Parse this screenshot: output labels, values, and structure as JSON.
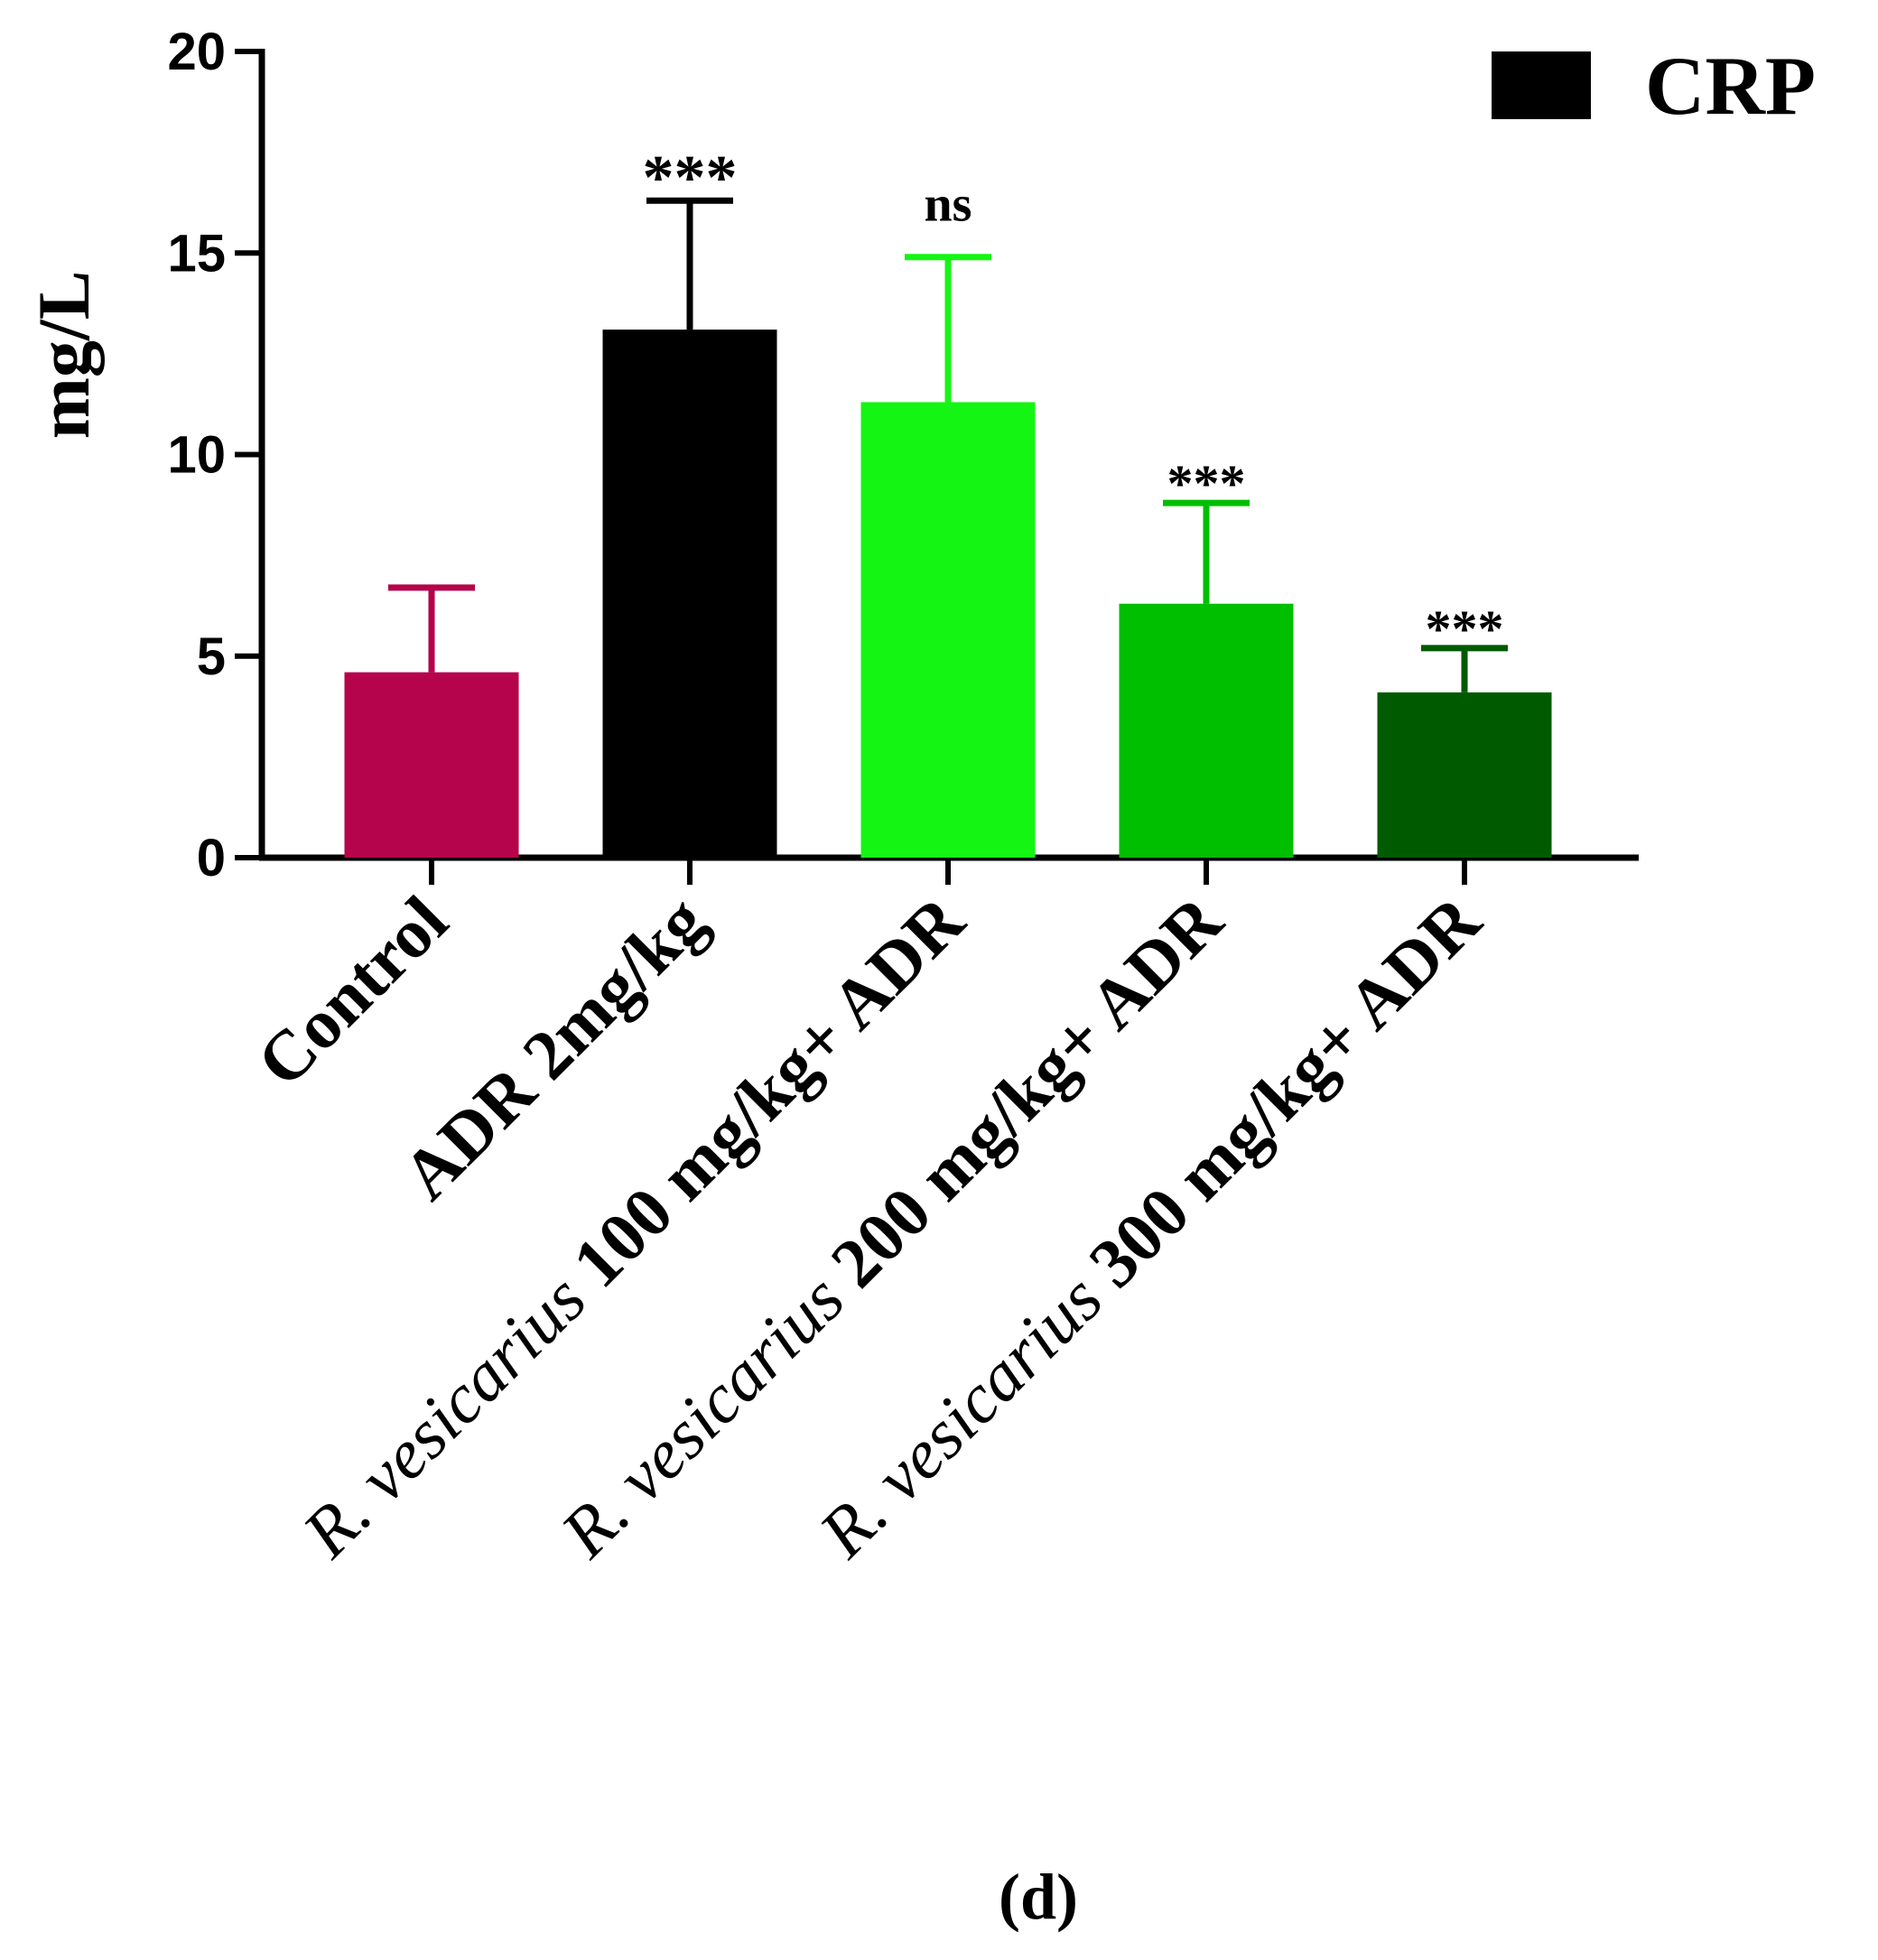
{
  "chart_data": {
    "type": "bar",
    "title": "",
    "ylabel": "mg/L",
    "xlabel": "",
    "ylim": [
      0,
      20
    ],
    "yticks": [
      0,
      5,
      10,
      15,
      20
    ],
    "ytick_labels": [
      "0",
      "5",
      "10",
      "15",
      "20"
    ],
    "grid": false,
    "legend": {
      "label": "CRP",
      "color": "#000000",
      "position": "top-right"
    },
    "panel_label": "(d)",
    "categories": [
      {
        "italic": "",
        "text": "Control"
      },
      {
        "italic": "",
        "text": "ADR 2mg/kg"
      },
      {
        "italic": "R. vesicarius",
        "text": " 100 mg/kg+ ADR"
      },
      {
        "italic": "R. vesicarius",
        "text": " 200 mg/kg+ ADR"
      },
      {
        "italic": "R. vesicarius",
        "text": " 300 mg/kg+ ADR"
      }
    ],
    "series": [
      {
        "values": [
          4.6,
          13.1,
          11.3,
          6.3,
          4.1
        ],
        "errors": [
          2.1,
          3.2,
          3.6,
          2.5,
          1.1
        ],
        "colors": [
          "#b5044b",
          "#000000",
          "#14f514",
          "#00be00",
          "#005a00"
        ],
        "significance": [
          "",
          "***",
          "ns",
          "***",
          "***"
        ]
      }
    ]
  }
}
